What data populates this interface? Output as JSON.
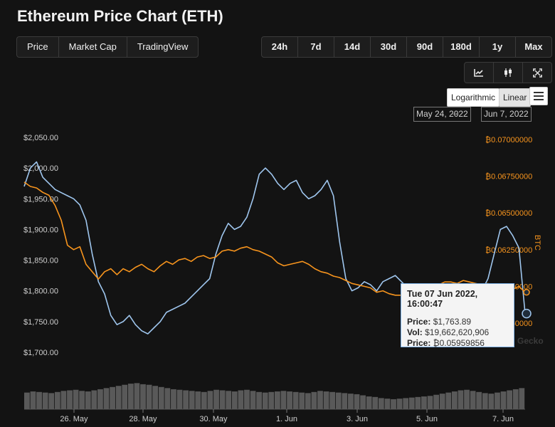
{
  "title": "Ethereum Price Chart (ETH)",
  "metric_tabs": [
    "Price",
    "Market Cap",
    "TradingView"
  ],
  "active_metric": 0,
  "range_tabs": [
    "24h",
    "7d",
    "14d",
    "30d",
    "90d",
    "180d",
    "1y",
    "Max"
  ],
  "active_range": 2,
  "tools": [
    {
      "name": "line-chart-icon"
    },
    {
      "name": "candlestick-icon"
    },
    {
      "name": "fullscreen-icon"
    }
  ],
  "scale": {
    "log_label": "Logarithmic",
    "linear_label": "Linear",
    "active": "Linear"
  },
  "date_range": {
    "from": "May 24, 2022",
    "arrow": "→",
    "to": "Jun 7, 2022"
  },
  "tooltip": {
    "date": "Tue 07 Jun 2022, 16:00:47",
    "price_label": "Price:",
    "price_value": "$1,763.89",
    "vol_label": "Vol:",
    "vol_value": "$19,662,620,906",
    "btc_label": "Price:",
    "btc_value": "₿0.05959856"
  },
  "watermark": "Gecko",
  "colors": {
    "usd_line": "#9fc6ee",
    "btc_line": "#f7941d",
    "active_range": "#8dc647",
    "volume": "#595959"
  },
  "chart_data": {
    "type": "line",
    "x_ticks": [
      "26. May",
      "28. May",
      "30. May",
      "1. Jun",
      "3. Jun",
      "5. Jun",
      "7. Jun"
    ],
    "y_left": {
      "label": "",
      "ticks": [
        "$1,700.00",
        "$1,750.00",
        "$1,800.00",
        "$1,850.00",
        "$1,900.00",
        "$1,950.00",
        "$2,000.00",
        "$2,050.00"
      ],
      "ylim": [
        1700,
        2050
      ]
    },
    "y_right": {
      "label": "BTC",
      "ticks": [
        "₿0.05750000",
        "₿0.06000000",
        "₿0.06250000",
        "₿0.06500000",
        "₿0.06750000",
        "₿0.07000000"
      ],
      "ylim": [
        0.0575,
        0.07
      ]
    },
    "grid": false,
    "series": [
      {
        "axis": "left",
        "values": [
          1970,
          2000,
          2010,
          1985,
          1975,
          1965,
          1960,
          1955,
          1950,
          1940,
          1915,
          1860,
          1815,
          1795,
          1760,
          1745,
          1750,
          1760,
          1745,
          1735,
          1730,
          1740,
          1750,
          1765,
          1770,
          1775,
          1780,
          1790,
          1800,
          1810,
          1820,
          1860,
          1890,
          1910,
          1900,
          1905,
          1920,
          1950,
          1990,
          2000,
          1990,
          1975,
          1965,
          1975,
          1980,
          1960,
          1950,
          1955,
          1965,
          1980,
          1955,
          1880,
          1820,
          1800,
          1805,
          1815,
          1810,
          1800,
          1815,
          1820,
          1825,
          1815,
          1805,
          1800,
          1795,
          1800,
          1790,
          1760,
          1755,
          1770,
          1780,
          1790,
          1795,
          1790,
          1800,
          1820,
          1860,
          1900,
          1905,
          1890,
          1870,
          1763
        ]
      },
      {
        "axis": "right",
        "values": [
          0.0671,
          0.0668,
          0.0667,
          0.0664,
          0.0662,
          0.0655,
          0.0645,
          0.0628,
          0.0625,
          0.0627,
          0.0615,
          0.061,
          0.0605,
          0.061,
          0.0612,
          0.0608,
          0.0612,
          0.061,
          0.0613,
          0.0615,
          0.0612,
          0.061,
          0.0614,
          0.0617,
          0.0615,
          0.0618,
          0.0619,
          0.0617,
          0.062,
          0.0621,
          0.0619,
          0.062,
          0.0624,
          0.0625,
          0.0624,
          0.0626,
          0.0627,
          0.0625,
          0.0624,
          0.0622,
          0.062,
          0.0616,
          0.0614,
          0.0615,
          0.0616,
          0.0617,
          0.0615,
          0.0612,
          0.061,
          0.0609,
          0.0607,
          0.0606,
          0.0604,
          0.0602,
          0.0601,
          0.06,
          0.0599,
          0.0596,
          0.0597,
          0.0595,
          0.0594,
          0.0594,
          0.0596,
          0.0598,
          0.0597,
          0.0599,
          0.06,
          0.0601,
          0.0603,
          0.0603,
          0.0602,
          0.0604,
          0.0603,
          0.0602,
          0.0601,
          0.06,
          0.0599,
          0.0597,
          0.0596,
          0.0598,
          0.06,
          0.0596
        ]
      }
    ],
    "volume": [
      30,
      32,
      31,
      30,
      29,
      31,
      33,
      34,
      35,
      33,
      32,
      34,
      36,
      38,
      40,
      42,
      44,
      46,
      47,
      45,
      44,
      42,
      40,
      38,
      36,
      35,
      34,
      33,
      32,
      31,
      33,
      35,
      34,
      33,
      32,
      34,
      35,
      33,
      31,
      30,
      31,
      32,
      33,
      32,
      31,
      30,
      29,
      31,
      33,
      32,
      31,
      30,
      29,
      28,
      27,
      25,
      23,
      22,
      20,
      19,
      18,
      19,
      20,
      21,
      22,
      23,
      24,
      26,
      28,
      30,
      32,
      34,
      35,
      33,
      31,
      29,
      28,
      30,
      32,
      34,
      36,
      38
    ]
  }
}
